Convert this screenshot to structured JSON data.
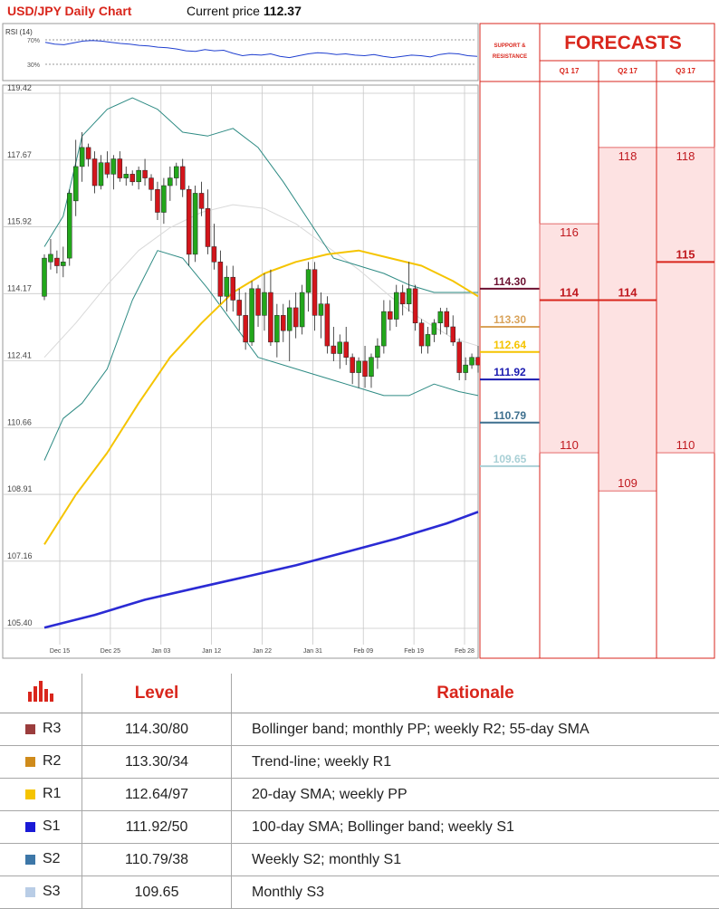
{
  "header": {
    "title": "USD/JPY Daily Chart",
    "price_label": "Current price",
    "price_value": "112.37"
  },
  "rsi": {
    "label": "RSI (14)",
    "levels": [
      "70%",
      "30%"
    ],
    "values": [
      66,
      63,
      62,
      65,
      68,
      69,
      68,
      66,
      64,
      63,
      61,
      60,
      58,
      57,
      55,
      52,
      51,
      54,
      52,
      53,
      48,
      44,
      46,
      45,
      47,
      43,
      41,
      44,
      47,
      49,
      48,
      46,
      47,
      45,
      44,
      46,
      43,
      41,
      43,
      45,
      44,
      42,
      46,
      48,
      47,
      44,
      43
    ]
  },
  "colors": {
    "brand_red": "#d9261c",
    "bull": "#22a71b",
    "bear": "#d3151b",
    "sma20": "#f5c400",
    "sma100": "#2b2bd4",
    "bollinger": "#2e8b84",
    "sma55": "#d9d9d9",
    "forecast_fill": "#fde2e2"
  },
  "chart_data": {
    "type": "candlestick",
    "title": "USD/JPY Daily Chart",
    "y_ticks": [
      "119.42",
      "117.67",
      "115.92",
      "114.17",
      "112.41",
      "110.66",
      "108.91",
      "107.16",
      "105.40"
    ],
    "ylim": [
      105.4,
      119.42
    ],
    "x_ticks": [
      "Dec 15",
      "Dec 25",
      "Jan 03",
      "Jan 12",
      "Jan 22",
      "Jan 31",
      "Feb 09",
      "Feb 19",
      "Feb 28"
    ],
    "grid": true,
    "ohlc": [
      [
        114.1,
        115.2,
        114.0,
        115.1
      ],
      [
        115.0,
        115.6,
        114.8,
        115.2
      ],
      [
        115.1,
        115.3,
        114.7,
        114.9
      ],
      [
        114.9,
        115.4,
        114.6,
        115.0
      ],
      [
        115.1,
        116.9,
        114.9,
        116.8
      ],
      [
        116.6,
        118.2,
        116.2,
        117.5
      ],
      [
        117.5,
        118.4,
        117.1,
        118.0
      ],
      [
        118.0,
        118.1,
        117.5,
        117.7
      ],
      [
        117.7,
        117.9,
        116.8,
        117.0
      ],
      [
        117.0,
        117.8,
        116.9,
        117.6
      ],
      [
        117.6,
        117.9,
        117.2,
        117.3
      ],
      [
        117.3,
        117.8,
        116.9,
        117.7
      ],
      [
        117.7,
        117.9,
        117.1,
        117.2
      ],
      [
        117.2,
        117.5,
        117.0,
        117.3
      ],
      [
        117.3,
        117.4,
        117.0,
        117.1
      ],
      [
        117.1,
        117.5,
        116.9,
        117.4
      ],
      [
        117.4,
        117.7,
        117.0,
        117.2
      ],
      [
        117.2,
        117.3,
        116.6,
        116.9
      ],
      [
        116.9,
        117.1,
        116.1,
        116.3
      ],
      [
        116.3,
        117.2,
        116.0,
        117.0
      ],
      [
        117.0,
        117.5,
        116.6,
        117.2
      ],
      [
        117.2,
        117.6,
        117.0,
        117.5
      ],
      [
        117.5,
        117.7,
        116.7,
        116.9
      ],
      [
        116.9,
        117.0,
        114.9,
        115.2
      ],
      [
        115.2,
        117.0,
        115.0,
        116.8
      ],
      [
        116.8,
        117.1,
        116.2,
        116.4
      ],
      [
        116.4,
        116.9,
        115.2,
        115.4
      ],
      [
        115.4,
        116.0,
        114.8,
        115.0
      ],
      [
        115.0,
        115.3,
        113.9,
        114.1
      ],
      [
        114.1,
        114.9,
        113.7,
        114.6
      ],
      [
        114.6,
        114.9,
        113.7,
        114.0
      ],
      [
        114.0,
        114.3,
        113.2,
        113.6
      ],
      [
        113.6,
        114.2,
        112.7,
        112.9
      ],
      [
        112.9,
        114.5,
        112.8,
        114.3
      ],
      [
        114.3,
        114.4,
        113.3,
        113.6
      ],
      [
        113.6,
        114.7,
        113.2,
        114.2
      ],
      [
        114.2,
        114.8,
        112.8,
        112.9
      ],
      [
        112.9,
        113.9,
        112.5,
        113.6
      ],
      [
        113.6,
        113.9,
        112.9,
        113.2
      ],
      [
        113.2,
        114.0,
        112.4,
        113.8
      ],
      [
        113.8,
        114.2,
        113.0,
        113.3
      ],
      [
        113.3,
        114.4,
        113.1,
        114.2
      ],
      [
        114.2,
        115.0,
        113.7,
        114.8
      ],
      [
        114.8,
        115.0,
        113.2,
        113.6
      ],
      [
        113.6,
        114.2,
        113.0,
        113.9
      ],
      [
        113.9,
        114.1,
        112.6,
        112.8
      ],
      [
        112.8,
        113.3,
        112.4,
        112.6
      ],
      [
        112.6,
        113.1,
        112.2,
        112.9
      ],
      [
        112.9,
        113.3,
        112.3,
        112.5
      ],
      [
        112.5,
        112.6,
        111.8,
        112.1
      ],
      [
        112.1,
        112.5,
        111.7,
        112.4
      ],
      [
        112.4,
        112.8,
        111.7,
        112.0
      ],
      [
        112.0,
        112.6,
        111.7,
        112.5
      ],
      [
        112.5,
        113.0,
        112.2,
        112.8
      ],
      [
        112.8,
        114.0,
        112.6,
        113.7
      ],
      [
        113.7,
        114.0,
        113.2,
        113.5
      ],
      [
        113.5,
        114.4,
        113.3,
        114.2
      ],
      [
        114.2,
        114.4,
        113.6,
        113.9
      ],
      [
        113.9,
        115.0,
        113.7,
        114.3
      ],
      [
        114.3,
        114.4,
        113.2,
        113.4
      ],
      [
        113.4,
        113.5,
        112.6,
        112.8
      ],
      [
        112.8,
        113.3,
        112.6,
        113.1
      ],
      [
        113.1,
        113.5,
        112.9,
        113.4
      ],
      [
        113.4,
        113.8,
        113.1,
        113.7
      ],
      [
        113.7,
        113.8,
        113.1,
        113.3
      ],
      [
        113.3,
        113.6,
        112.8,
        112.9
      ],
      [
        112.9,
        113.0,
        111.9,
        112.1
      ],
      [
        112.1,
        112.5,
        111.9,
        112.3
      ],
      [
        112.3,
        112.6,
        112.2,
        112.5
      ],
      [
        112.5,
        112.8,
        112.1,
        112.3
      ]
    ],
    "sma20": [
      [
        0,
        107.6
      ],
      [
        5,
        108.9
      ],
      [
        10,
        110.0
      ],
      [
        15,
        111.3
      ],
      [
        20,
        112.5
      ],
      [
        25,
        113.4
      ],
      [
        30,
        114.2
      ],
      [
        35,
        114.7
      ],
      [
        40,
        115.0
      ],
      [
        45,
        115.2
      ],
      [
        50,
        115.3
      ],
      [
        55,
        115.1
      ],
      [
        60,
        114.9
      ],
      [
        65,
        114.5
      ],
      [
        69,
        114.1
      ]
    ],
    "sma100": [
      [
        0,
        105.42
      ],
      [
        8,
        105.75
      ],
      [
        16,
        106.15
      ],
      [
        24,
        106.45
      ],
      [
        32,
        106.75
      ],
      [
        40,
        107.05
      ],
      [
        48,
        107.4
      ],
      [
        56,
        107.75
      ],
      [
        64,
        108.15
      ],
      [
        69,
        108.45
      ]
    ],
    "sma55": [
      [
        0,
        112.5
      ],
      [
        5,
        113.4
      ],
      [
        10,
        114.4
      ],
      [
        15,
        115.3
      ],
      [
        20,
        115.9
      ],
      [
        25,
        116.3
      ],
      [
        30,
        116.5
      ],
      [
        35,
        116.4
      ],
      [
        40,
        116.0
      ],
      [
        45,
        115.4
      ],
      [
        50,
        114.8
      ],
      [
        55,
        114.1
      ],
      [
        60,
        113.5
      ],
      [
        65,
        113.0
      ],
      [
        69,
        112.8
      ]
    ],
    "bb_upper": [
      [
        0,
        115.4
      ],
      [
        3,
        116.2
      ],
      [
        6,
        118.3
      ],
      [
        10,
        119.0
      ],
      [
        14,
        119.3
      ],
      [
        18,
        119.0
      ],
      [
        22,
        118.4
      ],
      [
        26,
        118.3
      ],
      [
        30,
        118.5
      ],
      [
        34,
        118.0
      ],
      [
        38,
        117.1
      ],
      [
        42,
        116.1
      ],
      [
        46,
        115.1
      ],
      [
        50,
        114.9
      ],
      [
        54,
        114.7
      ],
      [
        58,
        114.4
      ],
      [
        62,
        114.2
      ],
      [
        66,
        114.2
      ],
      [
        69,
        114.2
      ]
    ],
    "bb_lower": [
      [
        0,
        109.8
      ],
      [
        3,
        110.9
      ],
      [
        6,
        111.3
      ],
      [
        10,
        112.2
      ],
      [
        14,
        114.0
      ],
      [
        18,
        115.3
      ],
      [
        22,
        115.1
      ],
      [
        26,
        114.3
      ],
      [
        30,
        113.4
      ],
      [
        34,
        112.5
      ],
      [
        38,
        112.3
      ],
      [
        42,
        112.1
      ],
      [
        46,
        111.9
      ],
      [
        50,
        111.7
      ],
      [
        54,
        111.5
      ],
      [
        58,
        111.5
      ],
      [
        62,
        111.8
      ],
      [
        66,
        111.6
      ],
      [
        69,
        111.5
      ]
    ],
    "levels": [
      {
        "value": "114.30",
        "color": "#6b1030"
      },
      {
        "value": "113.30",
        "color": "#d9a35a"
      },
      {
        "value": "112.64",
        "color": "#f5c400"
      },
      {
        "value": "111.92",
        "color": "#1a1ab0"
      },
      {
        "value": "110.79",
        "color": "#3d6f8e"
      },
      {
        "value": "109.65",
        "color": "#a9d0d6"
      }
    ]
  },
  "forecast": {
    "support_label_1": "SUPPORT &",
    "support_label_2": "RESISTANCE",
    "title": "FORECASTS",
    "quarters": [
      "Q1 17",
      "Q2 17",
      "Q3 17"
    ],
    "high_labels": [
      "116",
      "118",
      "118"
    ],
    "mid_labels": [
      "114",
      "114",
      "115"
    ],
    "low_labels": [
      "110",
      "109",
      "110"
    ]
  },
  "table": {
    "headers": [
      "Level",
      "Rationale"
    ],
    "rows": [
      {
        "name": "R3",
        "color": "#9b3d3d",
        "level": "114.30/80",
        "rationale": "Bollinger band; monthly PP; weekly R2; 55-day SMA"
      },
      {
        "name": "R2",
        "color": "#cf8b1b",
        "level": "113.30/34",
        "rationale": "Trend-line; weekly R1"
      },
      {
        "name": "R1",
        "color": "#f5c400",
        "level": "112.64/97",
        "rationale": "20-day SMA; weekly PP"
      },
      {
        "name": "S1",
        "color": "#1a1ad6",
        "level": "111.92/50",
        "rationale": "100-day SMA; Bollinger band; weekly S1"
      },
      {
        "name": "S2",
        "color": "#3d77a8",
        "level": "110.79/38",
        "rationale": "Weekly S2; monthly S1"
      },
      {
        "name": "S3",
        "color": "#b9cde6",
        "level": "109.65",
        "rationale": "Monthly S3"
      }
    ]
  }
}
